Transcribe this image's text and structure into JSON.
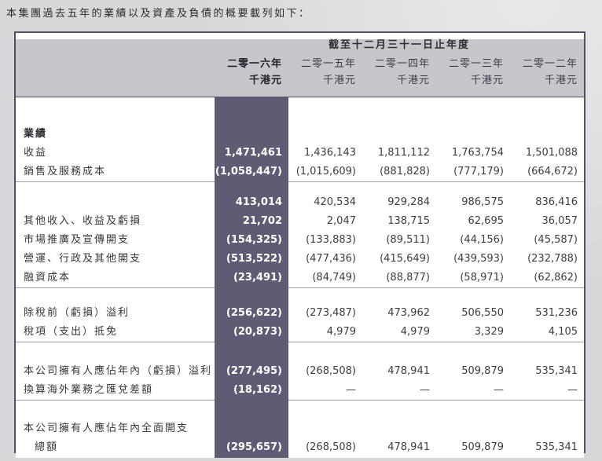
{
  "intro": "本集團過去五年的業績以及資產及負債的概要載列如下：",
  "table": {
    "period_title": "截至十二月三十一日止年度",
    "columns": [
      {
        "year": "二零一六年",
        "unit": "千港元",
        "highlight": true
      },
      {
        "year": "二零一五年",
        "unit": "千港元",
        "highlight": false
      },
      {
        "year": "二零一四年",
        "unit": "千港元",
        "highlight": false
      },
      {
        "year": "二零一三年",
        "unit": "千港元",
        "highlight": false
      },
      {
        "year": "二零一二年",
        "unit": "千港元",
        "highlight": false
      }
    ],
    "sections": [
      {
        "rows": [
          {
            "label": "業績",
            "bold": true,
            "values": [
              "",
              "",
              "",
              "",
              ""
            ]
          },
          {
            "label": "收益",
            "values": [
              "1,471,461",
              "1,436,143",
              "1,811,112",
              "1,763,754",
              "1,501,088"
            ]
          },
          {
            "label": "銷售及服務成本",
            "values": [
              "(1,058,447)",
              "(1,015,609)",
              "(881,828)",
              "(777,179)",
              "(664,672)"
            ]
          }
        ]
      },
      {
        "rows": [
          {
            "label": "",
            "values": [
              "413,014",
              "420,534",
              "929,284",
              "986,575",
              "836,416"
            ]
          },
          {
            "label": "其他收入、收益及虧損",
            "values": [
              "21,702",
              "2,047",
              "138,715",
              "62,695",
              "36,057"
            ]
          },
          {
            "label": "市場推廣及宣傳開支",
            "values": [
              "(154,325)",
              "(133,883)",
              "(89,511)",
              "(44,156)",
              "(45,587)"
            ]
          },
          {
            "label": "營運、行政及其他開支",
            "values": [
              "(513,522)",
              "(477,436)",
              "(415,649)",
              "(439,593)",
              "(232,788)"
            ]
          },
          {
            "label": "融資成本",
            "values": [
              "(23,491)",
              "(84,749)",
              "(88,877)",
              "(58,971)",
              "(62,862)"
            ]
          }
        ]
      },
      {
        "rows": [
          {
            "label": "除稅前（虧損）溢利",
            "values": [
              "(256,622)",
              "(273,487)",
              "473,962",
              "506,550",
              "531,236"
            ]
          },
          {
            "label": "稅項（支出）抵免",
            "values": [
              "(20,873)",
              "4,979",
              "4,979",
              "3,329",
              "4,105"
            ]
          }
        ]
      },
      {
        "rows": [
          {
            "label": "本公司擁有人應佔年內（虧損）溢利",
            "values": [
              "(277,495)",
              "(268,508)",
              "478,941",
              "509,879",
              "535,341"
            ]
          },
          {
            "label": "換算海外業務之匯兌差額",
            "values": [
              "(18,162)",
              "—",
              "—",
              "—",
              "—"
            ]
          }
        ]
      },
      {
        "rows": [
          {
            "label": "本公司擁有人應佔年內全面開支",
            "values": [
              "",
              "",
              "",
              "",
              ""
            ]
          },
          {
            "label": "總額",
            "indent": true,
            "values": [
              "(295,657)",
              "(268,508)",
              "478,941",
              "509,879",
              "535,341"
            ]
          }
        ]
      }
    ]
  },
  "colors": {
    "page_bg": "#d8d8da",
    "header_bg": "#c7c7cb",
    "table_border": "#4f4f66",
    "highlight_column": "#5d5c74",
    "highlight_text": "#ffffff"
  }
}
